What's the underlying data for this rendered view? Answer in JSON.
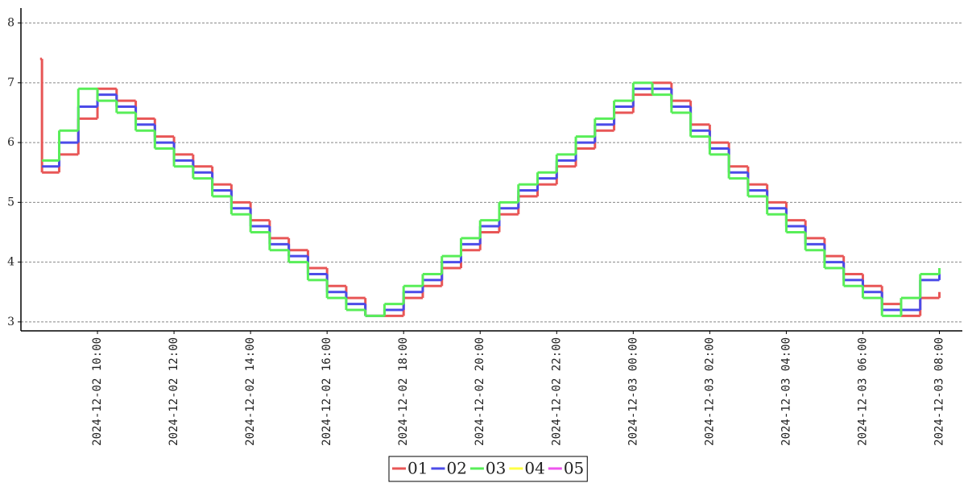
{
  "chart_data": {
    "type": "step",
    "x": [
      "2024-12-02 08:30",
      "2024-12-02 08:33",
      "2024-12-02 09:00",
      "2024-12-02 09:30",
      "2024-12-02 10:00",
      "2024-12-02 10:30",
      "2024-12-02 11:00",
      "2024-12-02 11:30",
      "2024-12-02 12:00",
      "2024-12-02 12:30",
      "2024-12-02 13:00",
      "2024-12-02 13:30",
      "2024-12-02 14:00",
      "2024-12-02 14:30",
      "2024-12-02 15:00",
      "2024-12-02 15:30",
      "2024-12-02 16:00",
      "2024-12-02 16:30",
      "2024-12-02 17:00",
      "2024-12-02 17:30",
      "2024-12-02 18:00",
      "2024-12-02 18:30",
      "2024-12-02 19:00",
      "2024-12-02 19:30",
      "2024-12-02 20:00",
      "2024-12-02 20:30",
      "2024-12-02 21:00",
      "2024-12-02 21:30",
      "2024-12-02 22:00",
      "2024-12-02 22:30",
      "2024-12-02 23:00",
      "2024-12-02 23:30",
      "2024-12-03 00:00",
      "2024-12-03 00:30",
      "2024-12-03 01:00",
      "2024-12-03 01:30",
      "2024-12-03 02:00",
      "2024-12-03 02:30",
      "2024-12-03 03:00",
      "2024-12-03 03:30",
      "2024-12-03 04:00",
      "2024-12-03 04:30",
      "2024-12-03 05:00",
      "2024-12-03 05:30",
      "2024-12-03 06:00",
      "2024-12-03 06:30",
      "2024-12-03 07:00",
      "2024-12-03 07:30",
      "2024-12-03 08:00"
    ],
    "series": [
      {
        "name": "01",
        "color": "#e85656",
        "values": [
          7.4,
          5.5,
          5.8,
          6.4,
          6.9,
          6.7,
          6.4,
          6.1,
          5.8,
          5.6,
          5.3,
          5.0,
          4.7,
          4.4,
          4.2,
          3.9,
          3.6,
          3.4,
          3.1,
          3.1,
          3.4,
          3.6,
          3.9,
          4.2,
          4.5,
          4.8,
          5.1,
          5.3,
          5.6,
          5.9,
          6.2,
          6.5,
          6.8,
          7.0,
          6.7,
          6.3,
          6.0,
          5.6,
          5.3,
          5.0,
          4.7,
          4.4,
          4.1,
          3.8,
          3.6,
          3.3,
          3.1,
          3.4,
          3.5
        ]
      },
      {
        "name": "02",
        "color": "#4b4be8",
        "values": [
          null,
          5.6,
          6.0,
          6.6,
          6.8,
          6.6,
          6.3,
          6.0,
          5.7,
          5.5,
          5.2,
          4.9,
          4.6,
          4.3,
          4.1,
          3.8,
          3.5,
          3.3,
          3.1,
          3.2,
          3.5,
          3.7,
          4.0,
          4.3,
          4.6,
          4.9,
          5.2,
          5.4,
          5.7,
          6.0,
          6.3,
          6.6,
          6.9,
          6.9,
          6.6,
          6.2,
          5.9,
          5.5,
          5.2,
          4.9,
          4.6,
          4.3,
          4.0,
          3.7,
          3.5,
          3.2,
          3.2,
          3.7,
          3.8
        ]
      },
      {
        "name": "03",
        "color": "#58ee58",
        "values": [
          null,
          5.7,
          6.2,
          6.9,
          6.7,
          6.5,
          6.2,
          5.9,
          5.6,
          5.4,
          5.1,
          4.8,
          4.5,
          4.2,
          4.0,
          3.7,
          3.4,
          3.2,
          3.1,
          3.3,
          3.6,
          3.8,
          4.1,
          4.4,
          4.7,
          5.0,
          5.3,
          5.5,
          5.8,
          6.1,
          6.4,
          6.7,
          7.0,
          6.8,
          6.5,
          6.1,
          5.8,
          5.4,
          5.1,
          4.8,
          4.5,
          4.2,
          3.9,
          3.6,
          3.4,
          3.1,
          3.4,
          3.8,
          3.9
        ]
      },
      {
        "name": "04",
        "color": "#ffff44",
        "values": [
          null,
          null,
          null,
          null,
          null,
          null,
          null,
          null,
          null,
          null,
          null,
          null,
          null,
          null,
          null,
          null,
          null,
          null,
          null,
          null,
          null,
          null,
          null,
          null,
          null,
          null,
          null,
          null,
          null,
          null,
          null,
          null,
          null,
          null,
          null,
          null,
          null,
          null,
          null,
          null,
          null,
          null,
          null,
          null,
          null,
          null,
          null,
          null,
          null
        ]
      },
      {
        "name": "05",
        "color": "#ee55ee",
        "values": [
          null,
          null,
          null,
          null,
          null,
          null,
          null,
          null,
          null,
          null,
          null,
          null,
          null,
          null,
          null,
          null,
          null,
          null,
          null,
          null,
          null,
          null,
          null,
          null,
          null,
          null,
          null,
          null,
          null,
          null,
          null,
          null,
          null,
          null,
          null,
          null,
          null,
          null,
          null,
          null,
          null,
          null,
          null,
          null,
          null,
          null,
          null,
          null,
          null
        ]
      }
    ],
    "xlim": [
      "2024-12-02 08:00",
      "2024-12-03 08:36"
    ],
    "xticks": [
      "2024-12-02 10:00",
      "2024-12-02 12:00",
      "2024-12-02 14:00",
      "2024-12-02 16:00",
      "2024-12-02 18:00",
      "2024-12-02 20:00",
      "2024-12-02 22:00",
      "2024-12-03 00:00",
      "2024-12-03 02:00",
      "2024-12-03 04:00",
      "2024-12-03 06:00",
      "2024-12-03 08:00"
    ],
    "ylim": [
      2.85,
      8.25
    ],
    "yticks": [
      3,
      4,
      5,
      6,
      7,
      8
    ],
    "grid": true,
    "legend": "bottom"
  }
}
